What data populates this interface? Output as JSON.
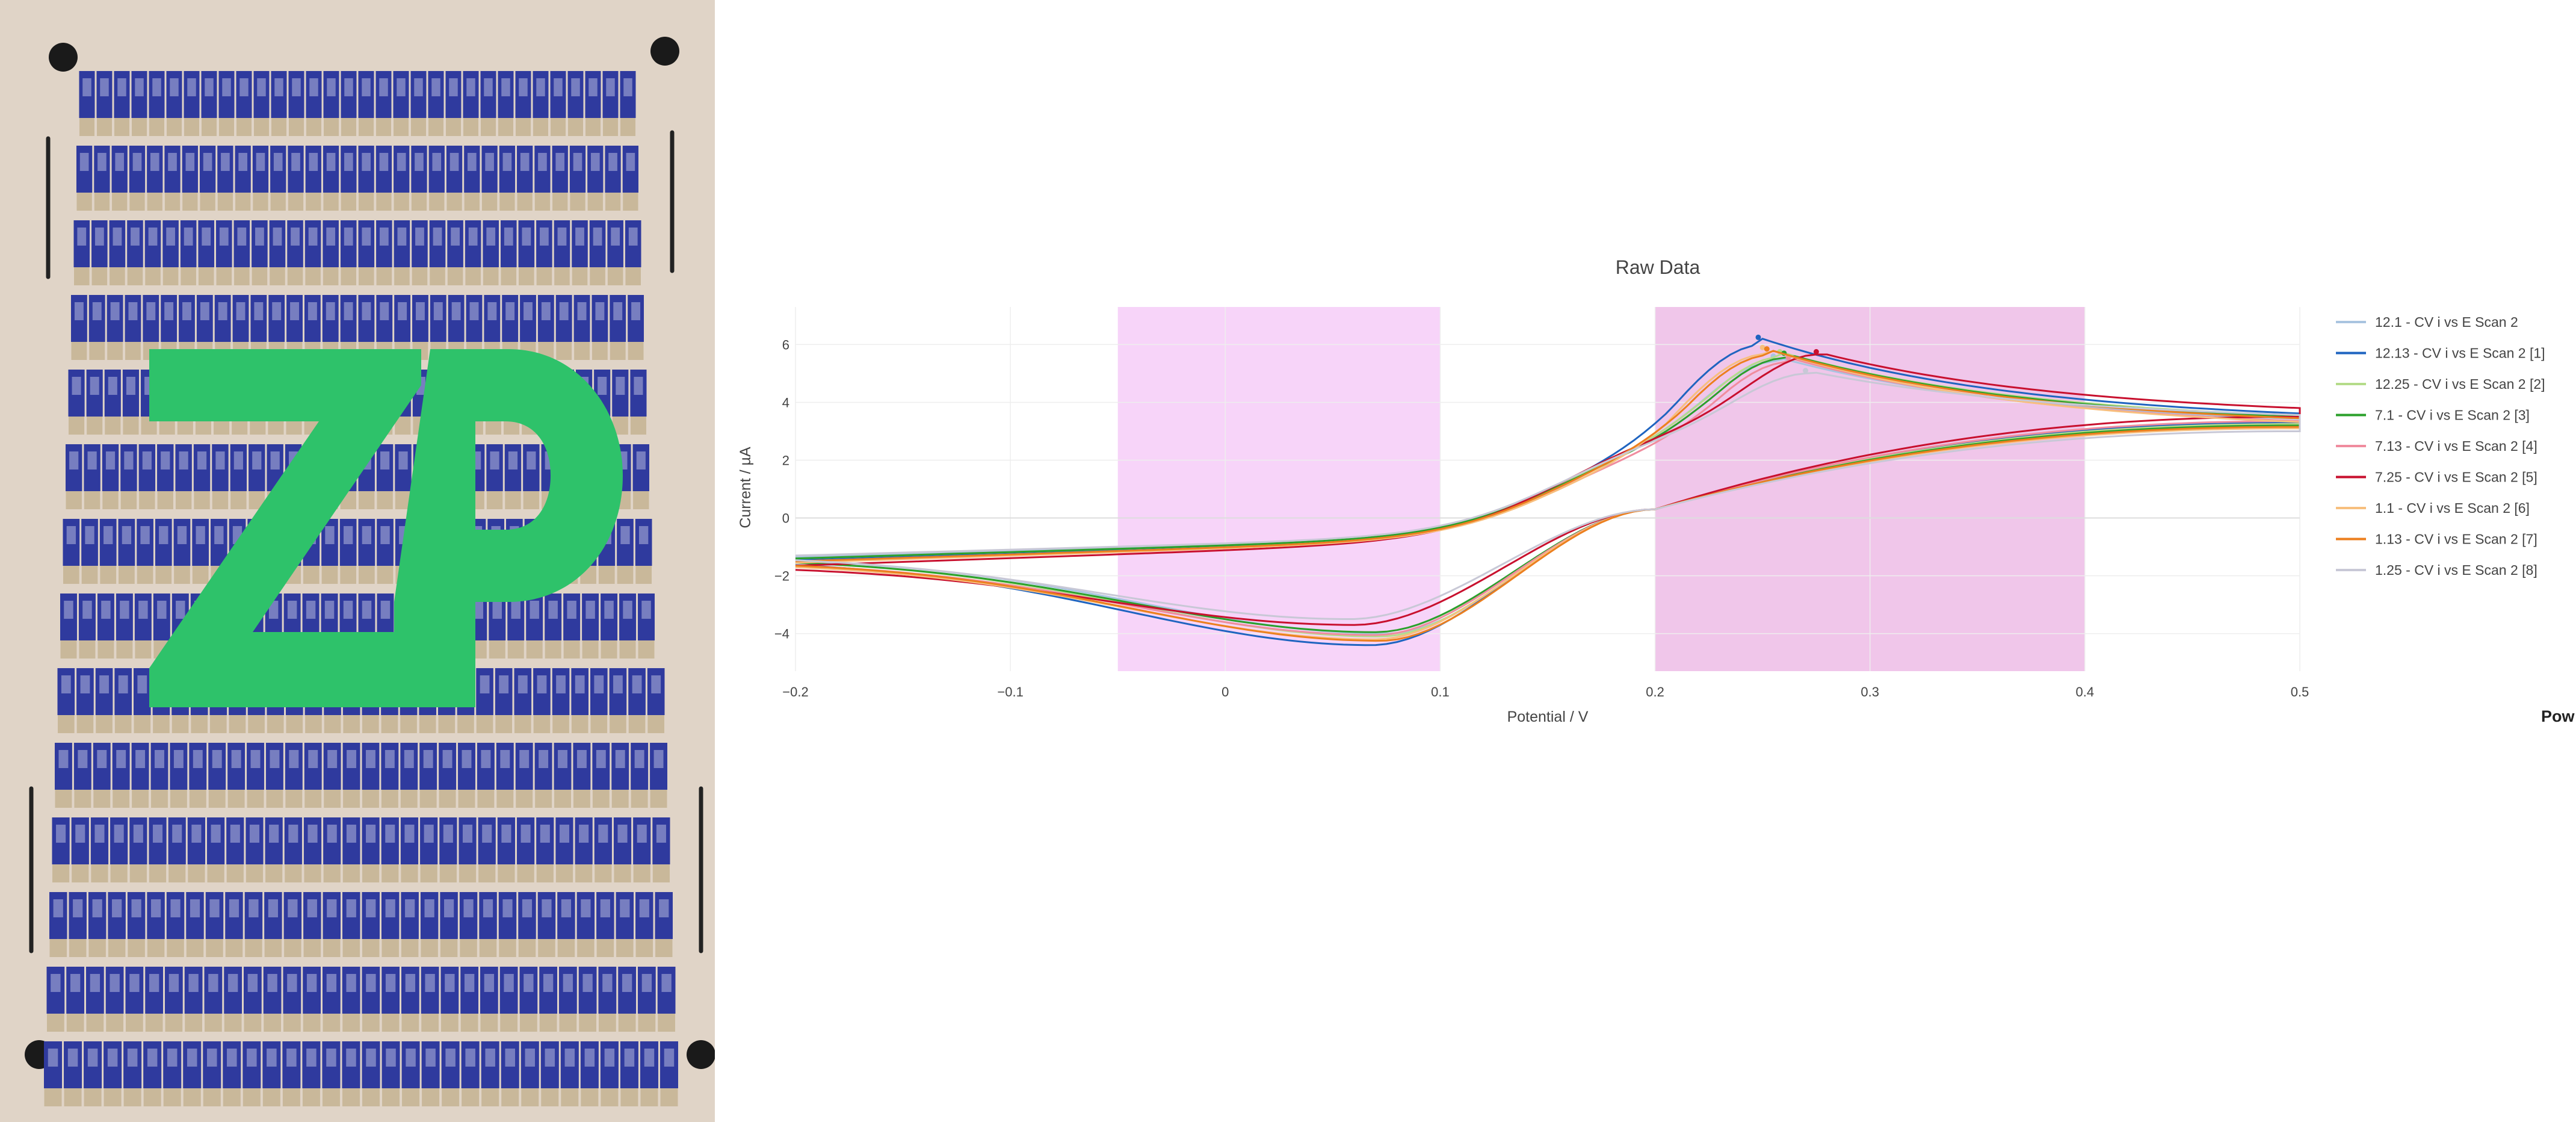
{
  "photo": {
    "logo_text": "ZP",
    "logo_color": "#2ec26a",
    "board_color": "#e0d4c7",
    "electrode_color": "#2f3a9e",
    "contact_color": "#c9b89a"
  },
  "colors": {
    "band_left": "#f7d4f9",
    "band_right": "#f0c6ea",
    "grid": "#eeeeee",
    "zeroline": "#dddddd"
  },
  "side_label": "Pow",
  "chart_data": {
    "type": "line",
    "title": "Raw Data",
    "xlabel": "Potential / V",
    "ylabel": "Current / µA",
    "xlim": [
      -0.2,
      0.5
    ],
    "ylim": [
      -5.3,
      7.3
    ],
    "xticks": [
      -0.2,
      -0.1,
      0,
      0.1,
      0.2,
      0.3,
      0.4,
      0.5
    ],
    "xtick_labels": [
      "−0.2",
      "−0.1",
      "0",
      "0.1",
      "0.2",
      "0.3",
      "0.4",
      "0.5"
    ],
    "yticks": [
      -4,
      -2,
      0,
      2,
      4,
      6
    ],
    "ytick_labels": [
      "−4",
      "−2",
      "0",
      "2",
      "4",
      "6"
    ],
    "grid": true,
    "legend_position": "right",
    "bands": [
      {
        "x0": -0.05,
        "x1": 0.1
      },
      {
        "x0": 0.2,
        "x1": 0.4
      }
    ],
    "series": [
      {
        "name": "12.1 - CV i vs E Scan 2",
        "color": "#a9c4e0",
        "ox_peak": [
          0.255,
          5.6
        ],
        "red_peak": [
          0.075,
          -4.0
        ],
        "start": -1.35,
        "end_fwd": 3.1,
        "end_rev": 3.2
      },
      {
        "name": "12.13 - CV i vs E Scan 2 [1]",
        "color": "#1f64c0",
        "ox_peak": [
          0.248,
          6.25
        ],
        "red_peak": [
          0.068,
          -4.4
        ],
        "start": -1.45,
        "end_fwd": 3.25,
        "end_rev": 3.3
      },
      {
        "name": "12.25 - CV i vs E Scan 2 [2]",
        "color": "#b5dc8a",
        "ox_peak": [
          0.258,
          5.75
        ],
        "red_peak": [
          0.072,
          -4.1
        ],
        "start": -1.4,
        "end_fwd": 3.2,
        "end_rev": 3.25
      },
      {
        "name": "7.1 - CV i vs E Scan 2 [3]",
        "color": "#2ba02b",
        "ox_peak": [
          0.26,
          5.7
        ],
        "red_peak": [
          0.07,
          -3.95
        ],
        "start": -1.4,
        "end_fwd": 3.15,
        "end_rev": 3.2
      },
      {
        "name": "7.13 - CV i vs E Scan 2 [4]",
        "color": "#f08c9e",
        "ox_peak": [
          0.262,
          5.55
        ],
        "red_peak": [
          0.07,
          -4.05
        ],
        "start": -1.5,
        "end_fwd": 3.0,
        "end_rev": 3.35
      },
      {
        "name": "7.25 - CV i vs E Scan 2 [5]",
        "color": "#c8102e",
        "ox_peak": [
          0.275,
          5.75
        ],
        "red_peak": [
          0.06,
          -3.7
        ],
        "start": -1.65,
        "end_fwd": 3.45,
        "end_rev": 3.5
      },
      {
        "name": "1.1 - CV i vs E Scan 2 [6]",
        "color": "#f7bf7e",
        "ox_peak": [
          0.25,
          5.9
        ],
        "red_peak": [
          0.07,
          -4.2
        ],
        "start": -1.55,
        "end_fwd": 2.95,
        "end_rev": 3.1
      },
      {
        "name": "1.13 - CV i vs E Scan 2 [7]",
        "color": "#ec7f1e",
        "ox_peak": [
          0.252,
          5.85
        ],
        "red_peak": [
          0.072,
          -4.25
        ],
        "start": -1.5,
        "end_fwd": 3.1,
        "end_rev": 3.15
      },
      {
        "name": "1.25 - CV i vs E Scan 2 [8]",
        "color": "#c8c8d6",
        "ox_peak": [
          0.27,
          5.1
        ],
        "red_peak": [
          0.058,
          -3.5
        ],
        "start": -1.3,
        "end_fwd": 3.3,
        "end_rev": 3.0
      }
    ]
  }
}
